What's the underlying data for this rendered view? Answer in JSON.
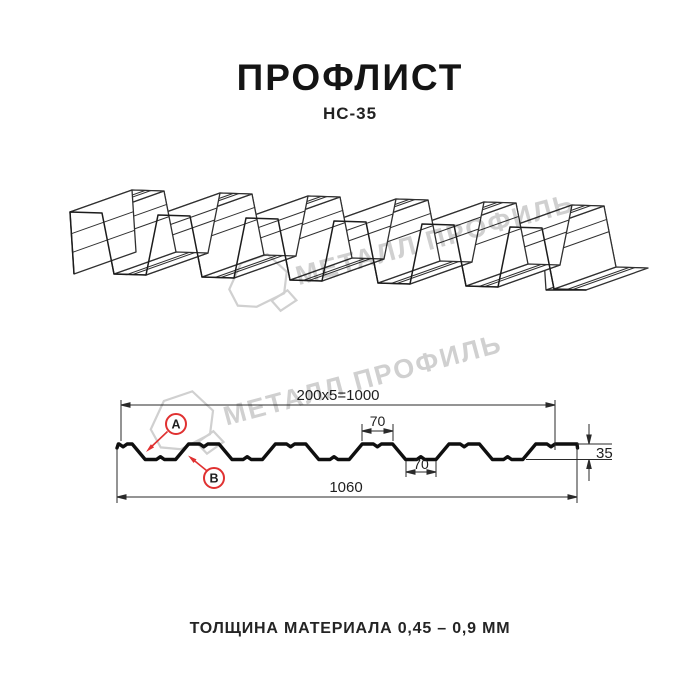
{
  "header": {
    "title": "ПРОФЛИСТ",
    "subtitle": "НС-35"
  },
  "footer": {
    "text": "ТОЛЩИНА МАТЕРИАЛА 0,45 – 0,9 ММ"
  },
  "watermark": {
    "text": "МЕТАЛЛ ПРОФИЛЬ",
    "color": "#d0d0d0"
  },
  "drawing": {
    "dimensions": {
      "working_width": "200x5=1000",
      "top_flange": "70",
      "bottom_flange": "70",
      "height": "35",
      "overall_width": "1060"
    },
    "labels": {
      "a": "А",
      "b": "В"
    },
    "colors": {
      "profile": "#0f0f0f",
      "dim_line": "#2a2a2a",
      "accent": "#e03131",
      "wireframe": "#303030"
    }
  },
  "profile_spec": {
    "pitch_mm": 200,
    "pitch_count": 5,
    "working_width_mm": 1000,
    "overall_width_mm": 1060,
    "height_mm": 35,
    "flange_mm": 70,
    "thickness_range_mm": "0,45 – 0,9"
  }
}
